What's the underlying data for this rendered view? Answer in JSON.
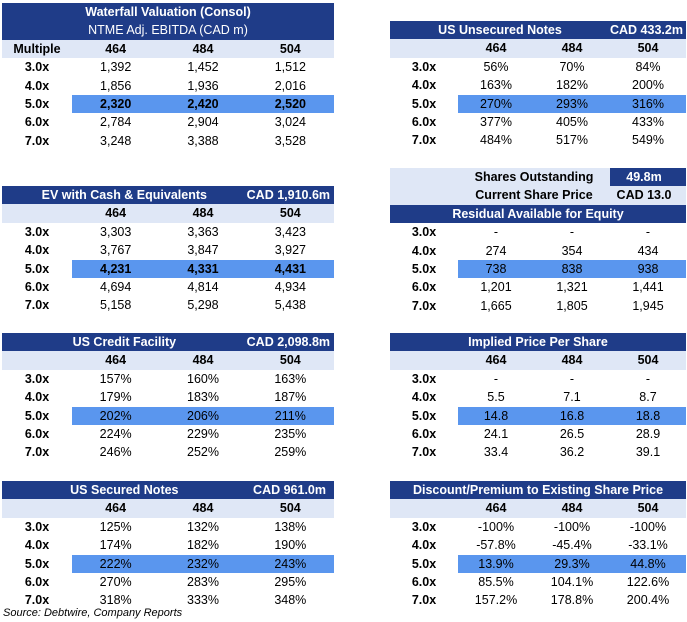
{
  "multiples": [
    "3.0x",
    "4.0x",
    "5.0x",
    "6.0x",
    "7.0x"
  ],
  "ebitda_cases": [
    "464",
    "484",
    "504"
  ],
  "valuation": {
    "title": "Waterfall Valuation (Consol)",
    "subtitle": "NTME Adj. EBITDA (CAD m)",
    "multiple_label": "Multiple",
    "rows": [
      [
        "1,392",
        "1,452",
        "1,512"
      ],
      [
        "1,856",
        "1,936",
        "2,016"
      ],
      [
        "2,320",
        "2,420",
        "2,520"
      ],
      [
        "2,784",
        "2,904",
        "3,024"
      ],
      [
        "3,248",
        "3,388",
        "3,528"
      ]
    ]
  },
  "ev_cash": {
    "title": "EV with Cash & Equivalents",
    "amount": "CAD 1,910.6m",
    "rows": [
      [
        "3,303",
        "3,363",
        "3,423"
      ],
      [
        "3,767",
        "3,847",
        "3,927"
      ],
      [
        "4,231",
        "4,331",
        "4,431"
      ],
      [
        "4,694",
        "4,814",
        "4,934"
      ],
      [
        "5,158",
        "5,298",
        "5,438"
      ]
    ]
  },
  "credit_facility": {
    "title": "US Credit Facility",
    "amount": "CAD 2,098.8m",
    "rows": [
      [
        "157%",
        "160%",
        "163%"
      ],
      [
        "179%",
        "183%",
        "187%"
      ],
      [
        "202%",
        "206%",
        "211%"
      ],
      [
        "224%",
        "229%",
        "235%"
      ],
      [
        "246%",
        "252%",
        "259%"
      ]
    ]
  },
  "secured_notes": {
    "title": "US Secured Notes",
    "amount": "CAD 961.0m",
    "rows": [
      [
        "125%",
        "132%",
        "138%"
      ],
      [
        "174%",
        "182%",
        "190%"
      ],
      [
        "222%",
        "232%",
        "243%"
      ],
      [
        "270%",
        "283%",
        "295%"
      ],
      [
        "318%",
        "333%",
        "348%"
      ]
    ]
  },
  "unsecured_notes": {
    "title": "US Unsecured Notes",
    "amount": "CAD 433.2m",
    "rows": [
      [
        "56%",
        "70%",
        "84%"
      ],
      [
        "163%",
        "182%",
        "200%"
      ],
      [
        "270%",
        "293%",
        "316%"
      ],
      [
        "377%",
        "405%",
        "433%"
      ],
      [
        "484%",
        "517%",
        "549%"
      ]
    ]
  },
  "shares": {
    "outstanding_label": "Shares Outstanding",
    "outstanding_value": "49.8m",
    "price_label": "Current Share Price",
    "price_value": "CAD 13.0"
  },
  "residual": {
    "title": "Residual Available for Equity",
    "rows": [
      [
        "-",
        "-",
        "-"
      ],
      [
        "274",
        "354",
        "434"
      ],
      [
        "738",
        "838",
        "938"
      ],
      [
        "1,201",
        "1,321",
        "1,441"
      ],
      [
        "1,665",
        "1,805",
        "1,945"
      ]
    ]
  },
  "implied_price": {
    "title": "Implied Price Per Share",
    "rows": [
      [
        "-",
        "-",
        "-"
      ],
      [
        "5.5",
        "7.1",
        "8.7"
      ],
      [
        "14.8",
        "16.8",
        "18.8"
      ],
      [
        "24.1",
        "26.5",
        "28.9"
      ],
      [
        "33.4",
        "36.2",
        "39.1"
      ]
    ]
  },
  "discount": {
    "title": "Discount/Premium to Existing Share Price",
    "rows": [
      [
        "-100%",
        "-100%",
        "-100%"
      ],
      [
        "-57.8%",
        "-45.4%",
        "-33.1%"
      ],
      [
        "13.9%",
        "29.3%",
        "44.8%"
      ],
      [
        "85.5%",
        "104.1%",
        "122.6%"
      ],
      [
        "157.2%",
        "178.8%",
        "200.4%"
      ]
    ]
  },
  "source": "Source: Debtwire, Company Reports"
}
